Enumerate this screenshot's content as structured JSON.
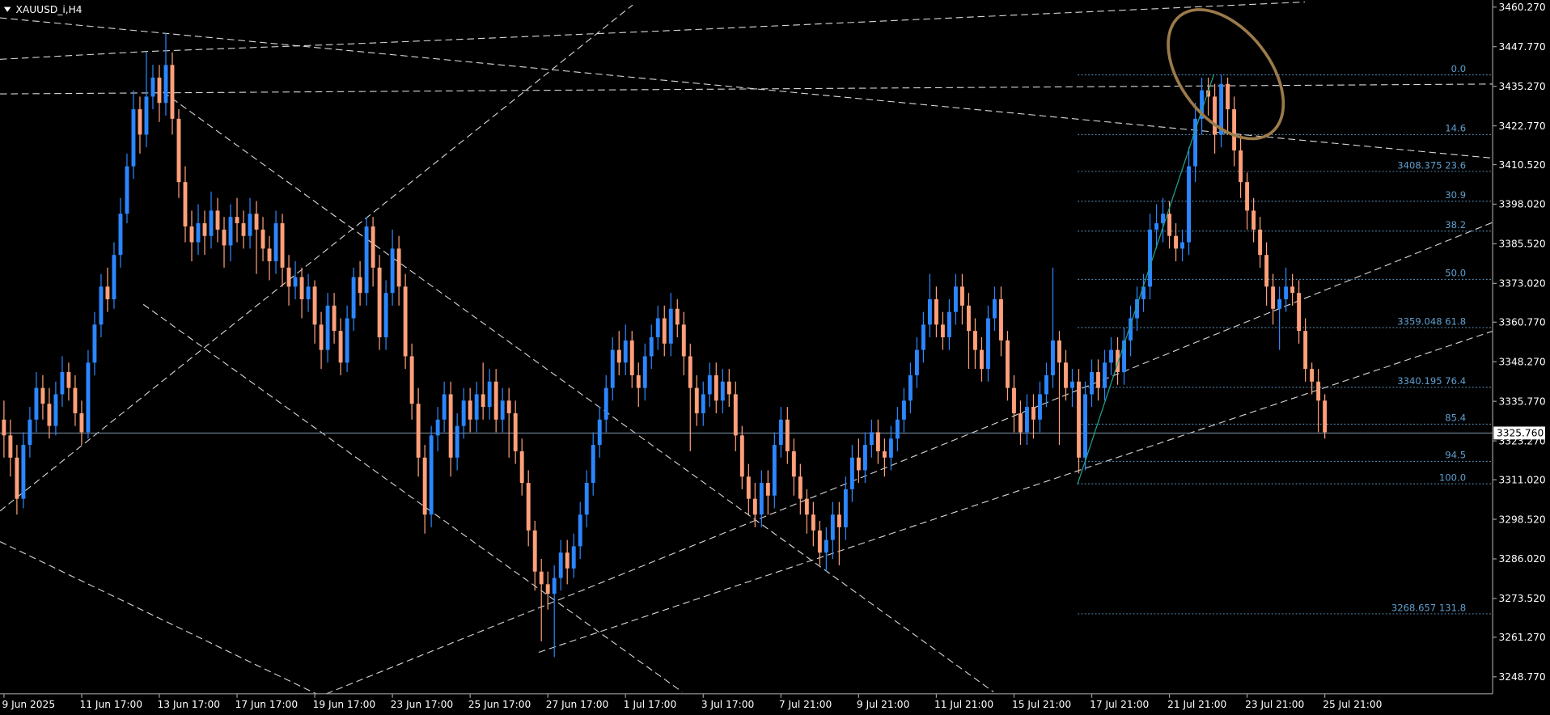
{
  "chart_data": {
    "type": "candlestick",
    "title": "XAUUSD_i,H4",
    "up_color": "#2b86ff",
    "down_color": "#ffa07a",
    "categories": [
      "9 Jun 2025",
      null,
      null,
      null,
      null,
      null,
      null,
      null,
      null,
      null,
      null,
      null,
      "11 Jun 17:00",
      null,
      null,
      null,
      null,
      null,
      null,
      null,
      null,
      null,
      null,
      null,
      "13 Jun 17:00",
      null,
      null,
      null,
      null,
      null,
      null,
      null,
      null,
      null,
      null,
      null,
      "17 Jun 17:00",
      null,
      null,
      null,
      null,
      null,
      null,
      null,
      null,
      null,
      null,
      null,
      "19 Jun 17:00",
      null,
      null,
      null,
      null,
      null,
      null,
      null,
      null,
      null,
      null,
      null,
      "23 Jun 17:00",
      null,
      null,
      null,
      null,
      null,
      null,
      null,
      null,
      null,
      null,
      null,
      "25 Jun 17:00",
      null,
      null,
      null,
      null,
      null,
      null,
      null,
      null,
      null,
      null,
      null,
      "27 Jun 17:00",
      null,
      null,
      null,
      null,
      null,
      null,
      null,
      null,
      null,
      null,
      null,
      "1 Jul 17:00",
      null,
      null,
      null,
      null,
      null,
      null,
      null,
      null,
      null,
      null,
      null,
      "3 Jul 17:00",
      null,
      null,
      null,
      null,
      null,
      null,
      null,
      null,
      null,
      null,
      null,
      "7 Jul 21:00",
      null,
      null,
      null,
      null,
      null,
      null,
      null,
      null,
      null,
      null,
      null,
      "9 Jul 21:00",
      null,
      null,
      null,
      null,
      null,
      null,
      null,
      null,
      null,
      null,
      null,
      "11 Jul 21:00",
      null,
      null,
      null,
      null,
      null,
      null,
      null,
      null,
      null,
      null,
      null,
      "15 Jul 21:00",
      null,
      null,
      null,
      null,
      null,
      null,
      null,
      null,
      null,
      null,
      null,
      "17 Jul 21:00",
      null,
      null,
      null,
      null,
      null,
      null,
      null,
      null,
      null,
      null,
      null,
      "21 Jul 21:00",
      null,
      null,
      null,
      null,
      null,
      null,
      null,
      null,
      null,
      null,
      null,
      "23 Jul 21:00",
      null,
      null,
      null,
      null,
      null,
      null,
      null,
      null,
      null,
      null,
      null,
      "25 Jul 21:00"
    ],
    "open": [
      3330,
      3325,
      3318,
      3305,
      3322,
      3330,
      3340,
      3335,
      3328,
      3338,
      3345,
      3340,
      3332,
      3326,
      3348,
      3360,
      3372,
      3368,
      3382,
      3395,
      3410,
      3428,
      3420,
      3432,
      3438,
      3430,
      3442,
      3425,
      3405,
      3391,
      3386,
      3392,
      3388,
      3396,
      3390,
      3385,
      3394,
      3392,
      3388,
      3395,
      3390,
      3384,
      3380,
      3392,
      3378,
      3372,
      3375,
      3368,
      3372,
      3360,
      3352,
      3366,
      3358,
      3348,
      3362,
      3375,
      3370,
      3391,
      3378,
      3356,
      3370,
      3384,
      3372,
      3350,
      3335,
      3318,
      3300,
      3325,
      3330,
      3338,
      3318,
      3328,
      3336,
      3330,
      3338,
      3334,
      3342,
      3330,
      3336,
      3332,
      3320,
      3310,
      3295,
      3282,
      3278,
      3275,
      3280,
      3288,
      3283,
      3290,
      3300,
      3310,
      3322,
      3330,
      3340,
      3352,
      3348,
      3355,
      3344,
      3340,
      3350,
      3356,
      3362,
      3354,
      3365,
      3360,
      3350,
      3340,
      3332,
      3338,
      3344,
      3336,
      3342,
      3338,
      3325,
      3312,
      3305,
      3300,
      3310,
      3306,
      3322,
      3330,
      3320,
      3312,
      3305,
      3300,
      3295,
      3288,
      3292,
      3300,
      3296,
      3308,
      3318,
      3314,
      3322,
      3326,
      3320,
      3318,
      3324,
      3330,
      3336,
      3344,
      3352,
      3360,
      3368,
      3360,
      3356,
      3364,
      3372,
      3366,
      3358,
      3352,
      3346,
      3362,
      3368,
      3355,
      3340,
      3332,
      3326,
      3334,
      3330,
      3338,
      3344,
      3355,
      3348,
      3340,
      3342,
      3318,
      3338,
      3345,
      3340,
      3348,
      3352,
      3345,
      3355,
      3362,
      3368,
      3372,
      3390,
      3392,
      3395,
      3388,
      3384,
      3386,
      3410,
      3425,
      3434,
      3432,
      3420,
      3436,
      3428,
      3415,
      3405,
      3396,
      3390,
      3382,
      3372,
      3365,
      3368,
      3372,
      3370,
      3358,
      3346,
      3342,
      3336
    ],
    "high": [
      3336,
      3330,
      3322,
      3326,
      3334,
      3345,
      3344,
      3340,
      3342,
      3350,
      3348,
      3344,
      3336,
      3352,
      3364,
      3376,
      3378,
      3386,
      3400,
      3414,
      3434,
      3432,
      3446,
      3442,
      3442,
      3452,
      3446,
      3428,
      3410,
      3396,
      3398,
      3396,
      3402,
      3400,
      3394,
      3398,
      3400,
      3396,
      3400,
      3399,
      3394,
      3388,
      3396,
      3395,
      3382,
      3380,
      3378,
      3376,
      3374,
      3364,
      3370,
      3370,
      3362,
      3366,
      3378,
      3380,
      3394,
      3394,
      3382,
      3374,
      3390,
      3388,
      3376,
      3354,
      3340,
      3322,
      3328,
      3334,
      3342,
      3342,
      3332,
      3340,
      3340,
      3342,
      3348,
      3346,
      3346,
      3340,
      3340,
      3336,
      3324,
      3314,
      3298,
      3286,
      3282,
      3284,
      3292,
      3292,
      3294,
      3304,
      3314,
      3326,
      3334,
      3344,
      3356,
      3358,
      3360,
      3358,
      3348,
      3354,
      3360,
      3366,
      3366,
      3370,
      3368,
      3364,
      3354,
      3344,
      3342,
      3348,
      3348,
      3346,
      3346,
      3342,
      3328,
      3316,
      3310,
      3314,
      3314,
      3326,
      3334,
      3334,
      3324,
      3316,
      3308,
      3304,
      3298,
      3296,
      3304,
      3304,
      3312,
      3322,
      3324,
      3326,
      3330,
      3330,
      3324,
      3328,
      3334,
      3340,
      3348,
      3356,
      3364,
      3376,
      3372,
      3364,
      3368,
      3376,
      3376,
      3370,
      3362,
      3356,
      3366,
      3372,
      3372,
      3358,
      3344,
      3336,
      3338,
      3338,
      3342,
      3348,
      3378,
      3358,
      3352,
      3346,
      3346,
      3342,
      3349,
      3349,
      3352,
      3356,
      3356,
      3359,
      3366,
      3372,
      3376,
      3395,
      3398,
      3400,
      3399,
      3392,
      3390,
      3416,
      3430,
      3438,
      3438,
      3436,
      3439,
      3438,
      3432,
      3420,
      3408,
      3400,
      3394,
      3386,
      3376,
      3372,
      3378,
      3376,
      3374,
      3362,
      3348,
      3346,
      3338
    ],
    "low": [
      3318,
      3312,
      3300,
      3302,
      3318,
      3326,
      3330,
      3324,
      3325,
      3334,
      3336,
      3328,
      3322,
      3324,
      3344,
      3356,
      3364,
      3365,
      3378,
      3392,
      3406,
      3414,
      3416,
      3428,
      3424,
      3426,
      3420,
      3400,
      3386,
      3380,
      3382,
      3382,
      3384,
      3386,
      3378,
      3380,
      3386,
      3384,
      3384,
      3376,
      3380,
      3374,
      3376,
      3372,
      3366,
      3368,
      3362,
      3364,
      3354,
      3346,
      3348,
      3354,
      3344,
      3345,
      3358,
      3366,
      3366,
      3372,
      3352,
      3352,
      3366,
      3366,
      3346,
      3330,
      3312,
      3294,
      3296,
      3320,
      3326,
      3312,
      3314,
      3324,
      3326,
      3326,
      3330,
      3330,
      3326,
      3326,
      3318,
      3316,
      3306,
      3290,
      3276,
      3260,
      3270,
      3255,
      3276,
      3278,
      3280,
      3286,
      3296,
      3306,
      3318,
      3326,
      3336,
      3344,
      3344,
      3340,
      3334,
      3336,
      3346,
      3352,
      3350,
      3350,
      3356,
      3344,
      3320,
      3328,
      3328,
      3334,
      3332,
      3332,
      3334,
      3320,
      3308,
      3300,
      3296,
      3296,
      3300,
      3302,
      3318,
      3316,
      3306,
      3300,
      3294,
      3290,
      3284,
      3282,
      3286,
      3284,
      3292,
      3304,
      3310,
      3310,
      3318,
      3316,
      3312,
      3314,
      3320,
      3326,
      3332,
      3340,
      3348,
      3356,
      3356,
      3352,
      3352,
      3360,
      3360,
      3346,
      3346,
      3342,
      3342,
      3358,
      3350,
      3336,
      3326,
      3322,
      3322,
      3324,
      3326,
      3334,
      3340,
      3322,
      3336,
      3334,
      3313,
      3314,
      3334,
      3336,
      3336,
      3344,
      3341,
      3341,
      3350,
      3358,
      3364,
      3368,
      3384,
      3386,
      3384,
      3380,
      3380,
      3382,
      3405,
      3420,
      3426,
      3414,
      3416,
      3420,
      3410,
      3400,
      3390,
      3386,
      3378,
      3366,
      3360,
      3352,
      3364,
      3366,
      3354,
      3342,
      3338,
      3326,
      3324
    ],
    "close": [
      3325,
      3318,
      3305,
      3322,
      3330,
      3340,
      3335,
      3328,
      3338,
      3345,
      3340,
      3332,
      3326,
      3348,
      3360,
      3372,
      3368,
      3382,
      3395,
      3410,
      3428,
      3420,
      3432,
      3438,
      3430,
      3442,
      3425,
      3405,
      3391,
      3386,
      3392,
      3388,
      3396,
      3390,
      3385,
      3394,
      3392,
      3388,
      3395,
      3390,
      3384,
      3380,
      3392,
      3378,
      3372,
      3375,
      3368,
      3372,
      3360,
      3352,
      3366,
      3358,
      3348,
      3362,
      3375,
      3370,
      3391,
      3378,
      3356,
      3370,
      3384,
      3372,
      3350,
      3335,
      3318,
      3300,
      3325,
      3330,
      3338,
      3318,
      3328,
      3336,
      3330,
      3338,
      3334,
      3342,
      3330,
      3336,
      3332,
      3320,
      3310,
      3295,
      3282,
      3278,
      3275,
      3280,
      3288,
      3283,
      3290,
      3300,
      3310,
      3322,
      3330,
      3340,
      3352,
      3348,
      3355,
      3344,
      3340,
      3350,
      3356,
      3362,
      3354,
      3365,
      3360,
      3350,
      3340,
      3332,
      3338,
      3344,
      3336,
      3342,
      3338,
      3325,
      3312,
      3305,
      3300,
      3310,
      3306,
      3322,
      3330,
      3320,
      3312,
      3305,
      3300,
      3295,
      3288,
      3292,
      3300,
      3296,
      3308,
      3318,
      3314,
      3322,
      3326,
      3320,
      3318,
      3324,
      3330,
      3336,
      3344,
      3352,
      3360,
      3368,
      3360,
      3356,
      3364,
      3372,
      3366,
      3358,
      3352,
      3346,
      3362,
      3368,
      3355,
      3340,
      3332,
      3326,
      3334,
      3330,
      3338,
      3344,
      3355,
      3348,
      3340,
      3342,
      3318,
      3338,
      3345,
      3340,
      3348,
      3352,
      3345,
      3355,
      3362,
      3368,
      3372,
      3390,
      3392,
      3395,
      3388,
      3384,
      3386,
      3410,
      3425,
      3434,
      3432,
      3420,
      3436,
      3428,
      3415,
      3405,
      3396,
      3390,
      3382,
      3372,
      3365,
      3368,
      3372,
      3370,
      3358,
      3346,
      3342,
      3336,
      3326
    ],
    "ylim": [
      3243.4,
      3462.5
    ],
    "yticks": [
      {
        "value": 3460.27,
        "label": "3460.270"
      },
      {
        "value": 3447.77,
        "label": "3447.770"
      },
      {
        "value": 3435.27,
        "label": "3435.270"
      },
      {
        "value": 3422.77,
        "label": "3422.770"
      },
      {
        "value": 3410.52,
        "label": "3410.520"
      },
      {
        "value": 3398.02,
        "label": "3398.020"
      },
      {
        "value": 3385.52,
        "label": "3385.520"
      },
      {
        "value": 3373.02,
        "label": "3373.020"
      },
      {
        "value": 3360.77,
        "label": "3360.770"
      },
      {
        "value": 3348.27,
        "label": "3348.270"
      },
      {
        "value": 3335.77,
        "label": "3335.770"
      },
      {
        "value": 3323.27,
        "label": "3323.270"
      },
      {
        "value": 3311.02,
        "label": "3311.020"
      },
      {
        "value": 3298.52,
        "label": "3298.520"
      },
      {
        "value": 3286.02,
        "label": "3286.020"
      },
      {
        "value": 3273.52,
        "label": "3273.520"
      },
      {
        "value": 3261.27,
        "label": "3261.270"
      },
      {
        "value": 3248.77,
        "label": "3248.770"
      }
    ],
    "last_price": {
      "value": 3325.76,
      "label": "3325.760"
    },
    "fib_color": "#5f9fcf",
    "fib_levels": [
      {
        "price": 3438.85,
        "label": "0.0"
      },
      {
        "price": 3420.0,
        "label": "14.6"
      },
      {
        "price": 3408.375,
        "label": "3408.375  23.6"
      },
      {
        "price": 3398.95,
        "label": "30.9"
      },
      {
        "price": 3389.52,
        "label": "38.2"
      },
      {
        "price": 3374.29,
        "label": "50.0"
      },
      {
        "price": 3359.048,
        "label": "3359.048  61.8"
      },
      {
        "price": 3340.195,
        "label": "3340.195  76.4"
      },
      {
        "price": 3328.57,
        "label": "85.4"
      },
      {
        "price": 3316.82,
        "label": "94.5"
      },
      {
        "price": 3309.72,
        "label": "100.0"
      },
      {
        "price": 3268.657,
        "label": "3268.657  131.8"
      }
    ]
  }
}
